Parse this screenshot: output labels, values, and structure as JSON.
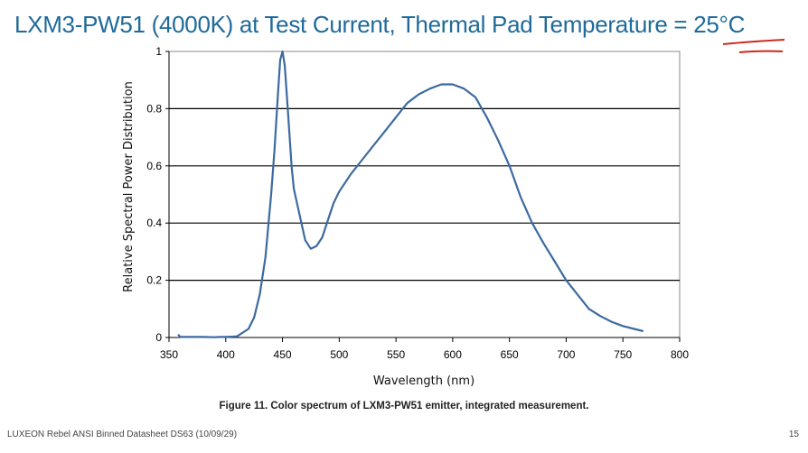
{
  "slide_title": "LXM3-PW51 (4000K) at Test Current, Thermal Pad Temperature = 25°C",
  "caption": "Figure 11.  Color spectrum of LXM3-PW51 emitter, integrated measurement.",
  "footer": "LUXEON Rebel ANSI Binned Datasheet DS63 (10/09/29)",
  "page_number": "15",
  "colors": {
    "title": "#1f6a9a",
    "series": "#3c6aa0",
    "annotation": "#cc2a1e"
  },
  "chart_data": {
    "type": "line",
    "title": "",
    "xlabel": "Wavelength (nm)",
    "ylabel": "Relative Spectral Power Distribution",
    "xlim": [
      350,
      800
    ],
    "ylim": [
      0,
      1
    ],
    "xticks": [
      "350",
      "400",
      "450",
      "500",
      "550",
      "600",
      "650",
      "700",
      "750",
      "800"
    ],
    "yticks": [
      "0",
      "0.2",
      "0.4",
      "0.6",
      "0.8",
      "1"
    ],
    "grid": "horizontal",
    "x": [
      358,
      360,
      370,
      380,
      390,
      395,
      400,
      410,
      420,
      425,
      430,
      435,
      440,
      443,
      446,
      448,
      450,
      452,
      455,
      458,
      460,
      465,
      470,
      475,
      480,
      485,
      490,
      495,
      500,
      510,
      520,
      530,
      540,
      550,
      560,
      570,
      580,
      590,
      600,
      610,
      620,
      630,
      640,
      650,
      660,
      670,
      680,
      690,
      700,
      710,
      720,
      730,
      740,
      750,
      760,
      768
    ],
    "y": [
      0.01,
      0.002,
      0.002,
      0.002,
      0.001,
      0.002,
      0.002,
      0.004,
      0.03,
      0.07,
      0.15,
      0.28,
      0.5,
      0.66,
      0.85,
      0.97,
      1.0,
      0.95,
      0.78,
      0.6,
      0.52,
      0.43,
      0.34,
      0.31,
      0.32,
      0.35,
      0.41,
      0.47,
      0.51,
      0.57,
      0.62,
      0.67,
      0.72,
      0.77,
      0.82,
      0.85,
      0.87,
      0.885,
      0.885,
      0.87,
      0.84,
      0.77,
      0.69,
      0.6,
      0.49,
      0.4,
      0.33,
      0.265,
      0.2,
      0.15,
      0.1,
      0.075,
      0.055,
      0.04,
      0.03,
      0.022
    ]
  }
}
